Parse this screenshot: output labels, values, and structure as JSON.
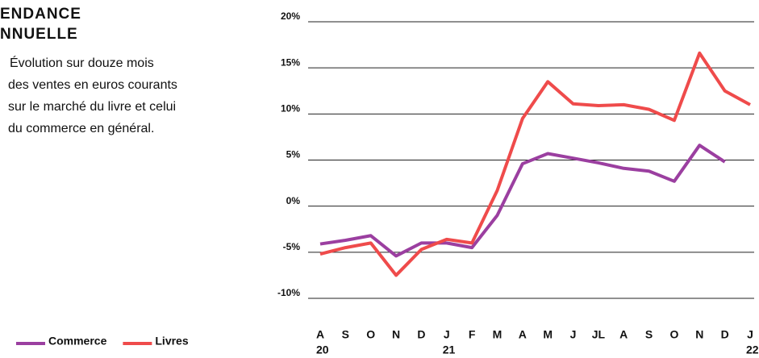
{
  "chart_data": {
    "type": "line",
    "title": [
      "ENDANCE",
      "NNUELLE"
    ],
    "subtitle": [
      "Évolution sur douze mois",
      "des ventes en euros courants",
      "sur le marché du livre et celui",
      "du commerce en général."
    ],
    "categories": [
      "A",
      "S",
      "O",
      "N",
      "D",
      "J",
      "F",
      "M",
      "A",
      "M",
      "J",
      "JL",
      "A",
      "S",
      "O",
      "N",
      "D",
      "J"
    ],
    "years": [
      "20",
      null,
      null,
      null,
      null,
      "21",
      null,
      null,
      null,
      null,
      null,
      null,
      null,
      null,
      null,
      null,
      null,
      "22"
    ],
    "series": [
      {
        "name": "Commerce",
        "color": "#9b3fa0",
        "values": [
          -4.1,
          -3.7,
          -3.2,
          -5.4,
          -4.0,
          -4.0,
          -4.5,
          -1.0,
          4.6,
          5.7,
          5.2,
          4.7,
          4.1,
          3.8,
          2.7,
          6.6,
          4.8,
          null
        ]
      },
      {
        "name": "Livres",
        "color": "#ef4b4b",
        "values": [
          -5.2,
          -4.5,
          -4.0,
          -7.5,
          -4.7,
          -3.6,
          -4.0,
          1.7,
          9.5,
          13.5,
          11.1,
          10.9,
          11.0,
          10.5,
          9.3,
          16.6,
          12.5,
          11.0
        ]
      }
    ],
    "ylim": [
      -10,
      20
    ],
    "yticks": [
      {
        "value": 20,
        "label": "20%"
      },
      {
        "value": 15,
        "label": "15%"
      },
      {
        "value": 10,
        "label": "10%"
      },
      {
        "value": 5,
        "label": "5%"
      },
      {
        "value": 0,
        "label": "0%"
      },
      {
        "value": -5,
        "label": "-5%"
      },
      {
        "value": -10,
        "label": "-10%"
      }
    ],
    "grid": true,
    "legend": "bottom-left"
  }
}
